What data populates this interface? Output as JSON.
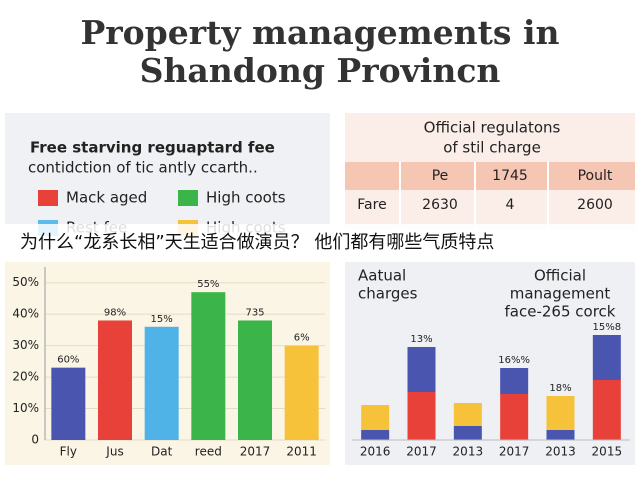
{
  "header": {
    "title_lines": [
      "Property managements in",
      "Shandong Provincn"
    ]
  },
  "legend_panel": {
    "title_lines": [
      "Free starving reguaptard fee",
      "contidction of tic antly ccarth.."
    ],
    "items": [
      {
        "label": "Mack aged",
        "color": "#e8413a"
      },
      {
        "label": "High coots",
        "color": "#3bb54a"
      },
      {
        "label": "Rest fee",
        "color": "#5bbbeb"
      },
      {
        "label": "High coots",
        "color": "#f5c23a"
      }
    ]
  },
  "table": {
    "title_lines": [
      "Official regulatons",
      "of stil charge"
    ],
    "header": [
      "Pe",
      "1745",
      "Poult"
    ],
    "rows": [
      {
        "label": "Fare",
        "cells": [
          "2630",
          "4",
          "2600"
        ]
      }
    ]
  },
  "banner": {
    "text": "为什么“龙系长相”天生适合做演员？ 他们都有哪些气质特点"
  },
  "chart_data": [
    {
      "type": "bar",
      "categories": [
        "Fly",
        "Jus",
        "Dat",
        "reed",
        "2017",
        "2011"
      ],
      "values": [
        23,
        38,
        36,
        47,
        38,
        30
      ],
      "colors": [
        "#4a55b0",
        "#e8413a",
        "#4fb3e8",
        "#3bb54a",
        "#3bb54a",
        "#f5c23a"
      ],
      "annotations": [
        "60%",
        "98%",
        "15%",
        "55%",
        "735",
        "6%"
      ],
      "ylim": [
        0,
        55
      ],
      "yticks": [
        0,
        {
          "value": 10,
          "label": "10%"
        },
        {
          "value": 20,
          "label": "20%"
        },
        {
          "value": 30,
          "label": "30%"
        },
        {
          "value": 40,
          "label": "40%"
        },
        {
          "value": 50,
          "label": "50%"
        }
      ],
      "grid": true
    },
    {
      "type": "stacked_bar",
      "categories": [
        "2016",
        "2017",
        "2013",
        "2017",
        "2013",
        "2015"
      ],
      "series": [
        {
          "values": [
            10,
            48,
            14,
            46,
            10,
            60
          ],
          "colors": [
            "#4a55b0",
            "#e8413a",
            "#4a55b0",
            "#e8413a",
            "#4a55b0",
            "#e8413a"
          ]
        },
        {
          "values": [
            25,
            45,
            23,
            26,
            34,
            45
          ],
          "colors": [
            "#f5c23a",
            "#4a55b0",
            "#f5c23a",
            "#4a55b0",
            "#f5c23a",
            "#4a55b0"
          ]
        }
      ],
      "ylim": [
        0,
        110
      ],
      "annotations": [
        [
          "Aatual",
          "charges"
        ],
        [
          "Official",
          "management",
          "face-265 corck"
        ]
      ],
      "bar_labels": [
        null,
        "13%",
        null,
        "16%%",
        "18%",
        "15%8"
      ]
    }
  ]
}
